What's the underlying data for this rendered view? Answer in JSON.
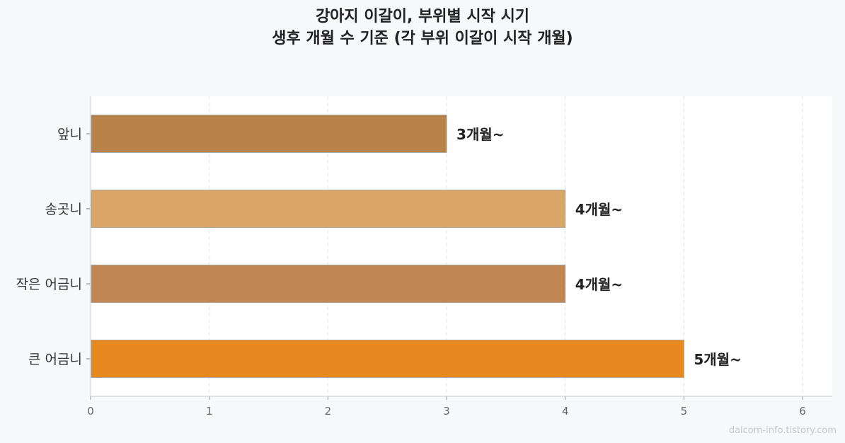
{
  "chart_data": {
    "type": "bar",
    "orientation": "horizontal",
    "title": "강아지 이갈이, 부위별 시작 시기",
    "subtitle": "생후 개월 수 기준 (각 부위 이갈이 시작 개월)",
    "categories": [
      "앞니",
      "송곳니",
      "작은 어금니",
      "큰 어금니"
    ],
    "values": [
      3,
      4,
      4,
      5
    ],
    "data_labels": [
      "3개월~",
      "4개월~",
      "4개월~",
      "5개월~"
    ],
    "colors": [
      "#b8834a",
      "#d9a668",
      "#c28554",
      "#e8891f"
    ],
    "xlim": [
      0,
      6.25
    ],
    "xticks": [
      "0",
      "1",
      "2",
      "3",
      "4",
      "5",
      "6"
    ],
    "grid": "vertical dashed",
    "xlabel": "",
    "ylabel": ""
  },
  "watermark": "dalcom-info.tistory.com"
}
